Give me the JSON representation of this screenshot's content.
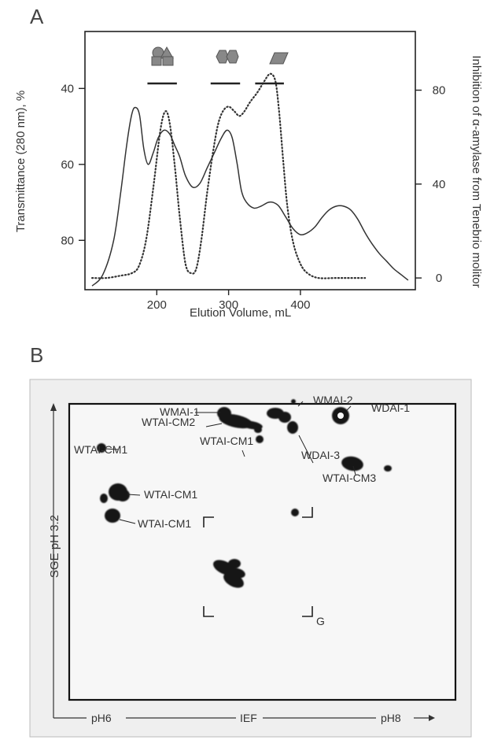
{
  "figure": {
    "panel_a_letter": "A",
    "panel_b_letter": "B"
  },
  "chart_data": {
    "type": "line",
    "xlabel": "Elution Volume, mL",
    "ylabel": "Transmittance (280 nm), %",
    "y2label": "Inhibition of α-amylase from Tenebrio molitor",
    "xlim": [
      100,
      560
    ],
    "x_ticks": [
      200,
      300,
      400
    ],
    "ylim": [
      93,
      25
    ],
    "y_ticks": [
      40,
      60,
      80
    ],
    "y2lim": [
      -5,
      105
    ],
    "y2_ticks": [
      0,
      40,
      80
    ],
    "grid": false,
    "series": [
      {
        "axis": "left",
        "style": "solid",
        "x": [
          110,
          125,
          140,
          150,
          158,
          165,
          170,
          176,
          182,
          188,
          195,
          202,
          210,
          218,
          225,
          232,
          240,
          250,
          260,
          270,
          280,
          290,
          298,
          305,
          312,
          318,
          325,
          335,
          345,
          355,
          362,
          370,
          380,
          390,
          400,
          410,
          420,
          430,
          440,
          450,
          460,
          470,
          480,
          490,
          500,
          510,
          520,
          530,
          540,
          550
        ],
        "y": [
          92,
          89,
          80,
          67,
          55,
          47,
          45,
          47,
          56,
          60,
          57,
          53,
          51,
          52,
          55,
          58,
          63,
          66,
          65,
          61,
          57,
          53,
          51,
          53,
          60,
          67,
          70,
          71.5,
          71,
          70,
          70,
          71,
          74,
          77,
          78.5,
          78,
          76.5,
          74,
          72,
          71,
          71,
          72,
          74.5,
          78,
          81,
          83.5,
          85.5,
          87.5,
          89,
          90.5
        ]
      },
      {
        "axis": "right",
        "style": "dotted",
        "x": [
          110,
          130,
          150,
          165,
          175,
          185,
          195,
          205,
          212,
          218,
          225,
          232,
          240,
          248,
          255,
          262,
          270,
          278,
          285,
          292,
          300,
          308,
          315,
          322,
          330,
          340,
          350,
          358,
          365,
          370,
          376,
          382,
          390,
          400,
          410,
          425,
          450,
          470,
          490
        ],
        "y": [
          0,
          0,
          1,
          2,
          5,
          16,
          38,
          63,
          71,
          66,
          48,
          26,
          6,
          2,
          4,
          16,
          36,
          53,
          65,
          71,
          73,
          71,
          69,
          71,
          75,
          79,
          84,
          87,
          84,
          72,
          50,
          30,
          15,
          6,
          2,
          0,
          0,
          0,
          0
        ]
      }
    ],
    "fraction_bars": [
      {
        "x_start": 187,
        "x_end": 228,
        "marker": "circle-triangle-square-icon"
      },
      {
        "x_start": 275,
        "x_end": 316,
        "marker": "double-hexagon-icon"
      },
      {
        "x_start": 337,
        "x_end": 377,
        "marker": "parallelogram-icon"
      }
    ]
  },
  "gel": {
    "y_axis_label": "SGE pH 3.2",
    "x_label_left": "pH6",
    "x_label_mid": "IEF",
    "x_label_right": "pH8",
    "bracket_label": "G",
    "spot_labels": [
      "WTAI-CM1",
      "WMAI-2",
      "WMAI-1",
      "WTAI-CM2",
      "WDAI-1",
      "WDAI-3",
      "WTAI-CM1",
      "WTAI-CM1",
      "WTAI-CM1",
      "WTAI-CM3"
    ]
  }
}
